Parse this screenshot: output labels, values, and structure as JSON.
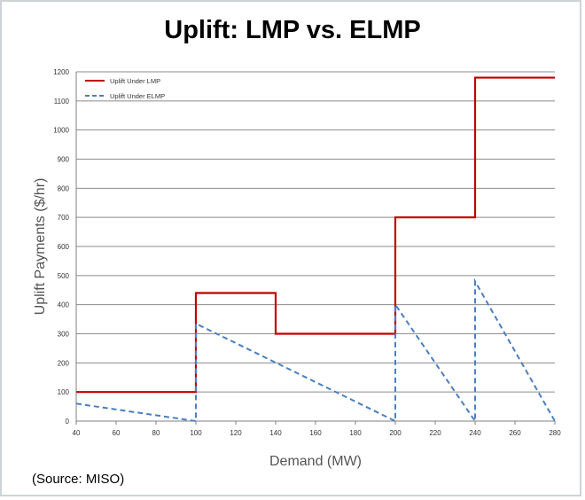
{
  "chart_data": {
    "type": "line",
    "title": "Uplift: LMP vs. ELMP",
    "xlabel": "Demand (MW)",
    "ylabel": "Uplift Payments ($/hr)",
    "xlim": [
      40,
      280
    ],
    "ylim": [
      0,
      1200
    ],
    "xticks": [
      40,
      60,
      80,
      100,
      120,
      140,
      160,
      180,
      200,
      220,
      240,
      260,
      280
    ],
    "yticks": [
      0,
      100,
      200,
      300,
      400,
      500,
      600,
      700,
      800,
      900,
      1000,
      1100,
      1200
    ],
    "grid": "horizontal",
    "legend_position": "top-left",
    "series": [
      {
        "name": "Uplift Under LMP",
        "style": "solid",
        "color": "#c00000",
        "points": [
          [
            40,
            100
          ],
          [
            100,
            100
          ],
          [
            100,
            440
          ],
          [
            140,
            440
          ],
          [
            140,
            300
          ],
          [
            200,
            300
          ],
          [
            200,
            700
          ],
          [
            240,
            700
          ],
          [
            240,
            1180
          ],
          [
            280,
            1180
          ]
        ]
      },
      {
        "name": "Uplift Under ELMP",
        "style": "dashed",
        "color": "#4a7ec2",
        "points": [
          [
            40,
            60
          ],
          [
            100,
            0
          ],
          [
            100,
            335
          ],
          [
            200,
            0
          ],
          [
            200,
            400
          ],
          [
            240,
            0
          ],
          [
            240,
            480
          ],
          [
            280,
            0
          ]
        ]
      }
    ]
  },
  "source_note": "(Source: MISO)"
}
